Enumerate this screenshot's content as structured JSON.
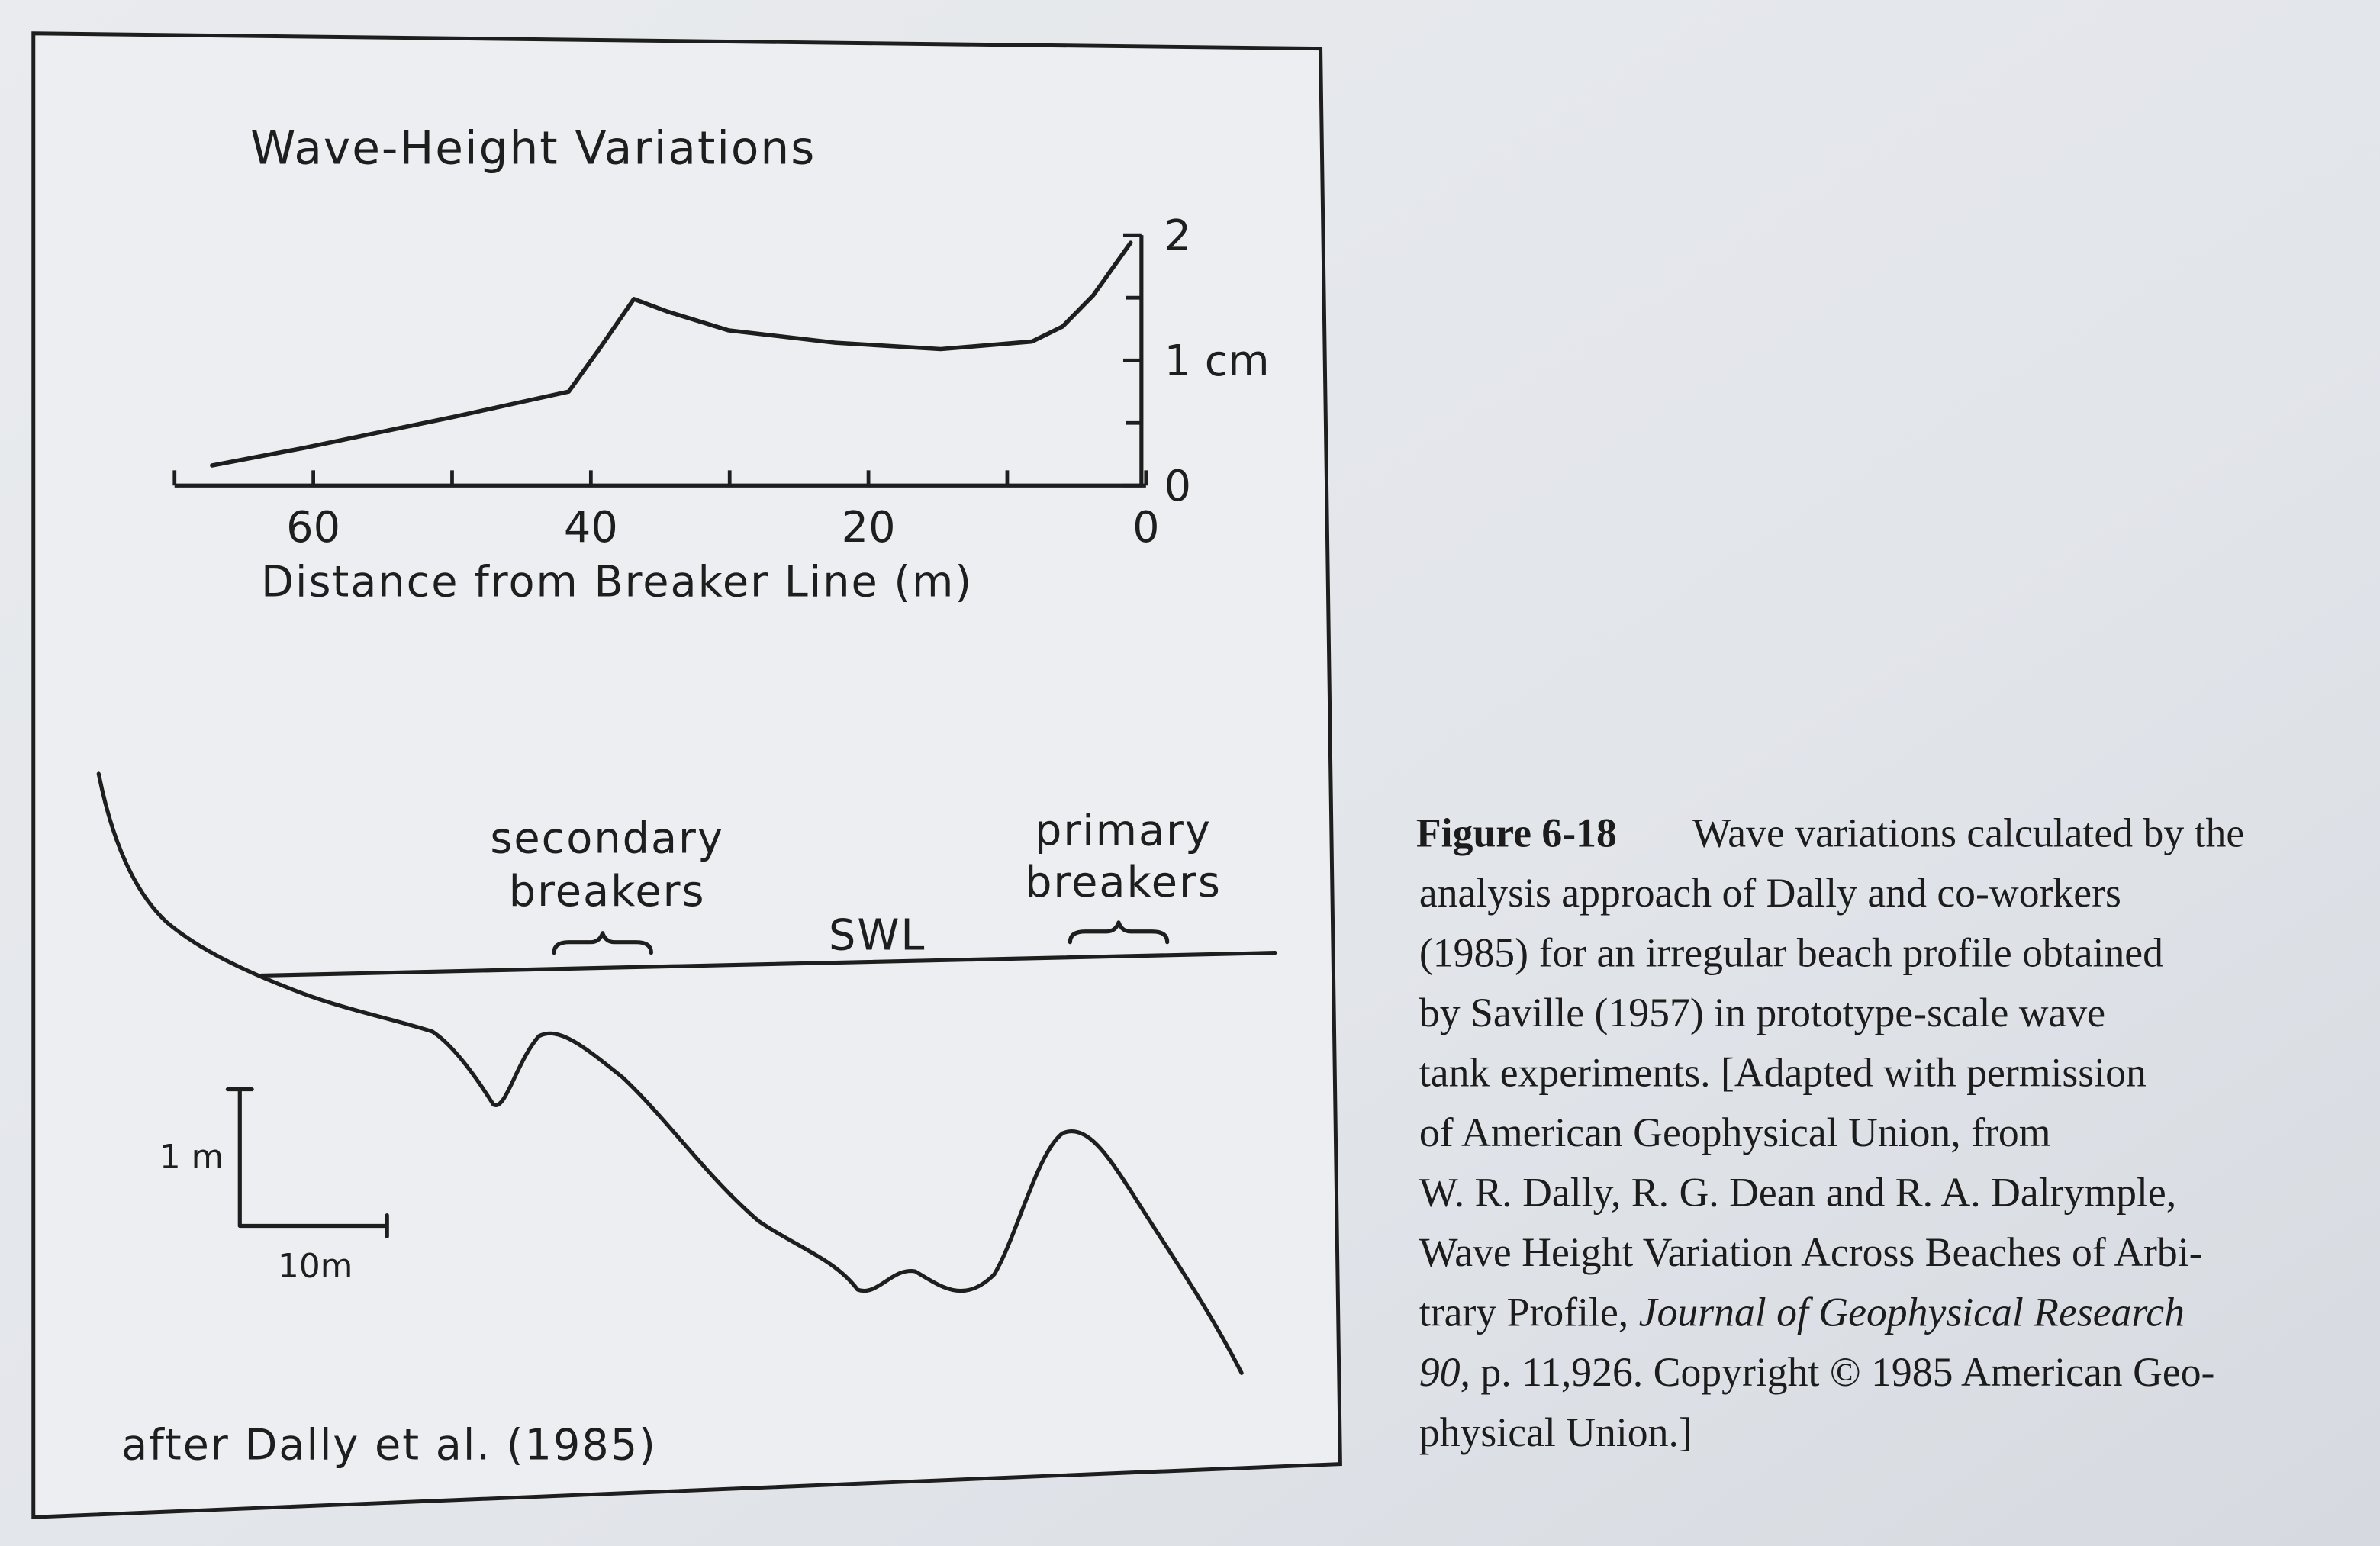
{
  "chart_data": {
    "type": "line",
    "title": "Wave-Height Variations",
    "x_label": "Distance from Breaker Line (m)",
    "x": [
      67.3,
      60.7,
      49.8,
      41.6,
      39.4,
      36.9,
      34.5,
      30.1,
      22.4,
      14.8,
      8.2,
      6,
      3.8,
      1.1
    ],
    "values": [
      0.16,
      0.3,
      0.55,
      0.75,
      1.09,
      1.49,
      1.39,
      1.24,
      1.14,
      1.09,
      1.15,
      1.27,
      1.52,
      1.94
    ],
    "color": "#1e1e1e",
    "xlim": [
      70,
      0
    ],
    "xticks": [
      60,
      40,
      20,
      0
    ],
    "ylim": [
      0,
      2
    ],
    "yticks": [
      0,
      {
        "value": 1,
        "label": "1 cm"
      },
      2
    ]
  },
  "profile": {
    "labels": {
      "secondary": [
        "secondary",
        "breakers"
      ],
      "primary": [
        "primary",
        "breakers"
      ],
      "swl": "SWL"
    },
    "scale": {
      "vertical": "1 m",
      "horizontal": "10m"
    },
    "source": "after Dally et al. (1985)"
  },
  "caption": {
    "label": "Figure 6-18",
    "lines": [
      [
        "Wave variations calculated by the"
      ],
      [
        "analysis approach of Dally and co-workers"
      ],
      [
        "(1985) for an irregular beach profile obtained"
      ],
      [
        "by Saville (1957) in prototype-scale wave"
      ],
      [
        "tank experiments. [Adapted with permission"
      ],
      [
        "of American Geophysical Union, from"
      ],
      [
        "W. R. Dally, R. G. Dean and R. A. Dalrymple,"
      ],
      [
        "Wave Height Variation Across Beaches of Arbi-"
      ],
      [
        "trary Profile, ",
        {
          "italic": "Journal of Geophysical Research"
        }
      ],
      [
        {
          "italic": "90"
        },
        ", p. 11,926. Copyright © 1985 American Geo-"
      ],
      [
        "physical Union.]"
      ]
    ]
  }
}
